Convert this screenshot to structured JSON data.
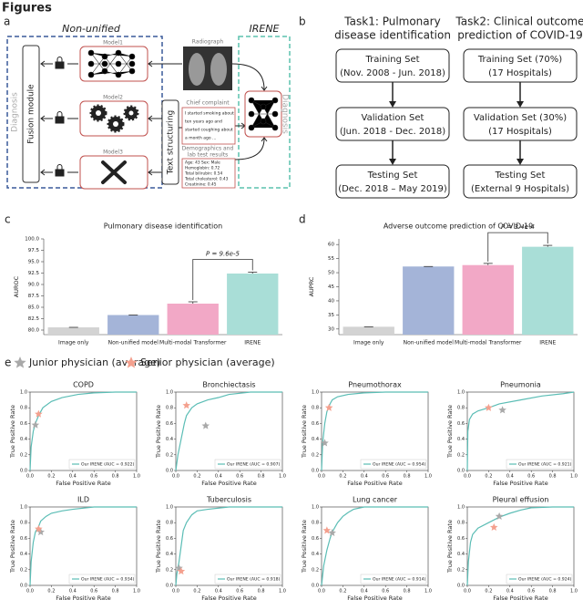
{
  "header": {
    "title": "Figures"
  },
  "panel_labels": [
    "a",
    "b",
    "c",
    "d",
    "e"
  ],
  "diagram_a": {
    "non_unified": "Non-unified",
    "irene": "IRENE",
    "models": [
      "Model1",
      "Model2",
      "Model3"
    ],
    "radiograph": "Radiograph",
    "chief_complaint": "Chief complaint",
    "chief_complaint_text": [
      "I started smoking about",
      "ten years ago and",
      "started coughing about",
      "a month ago ..."
    ],
    "demographics": [
      "Demographics and",
      "lab test results"
    ],
    "demographics_text": [
      "Age: 43 Sex: Male",
      "Hemoglobin: 0.72",
      "Total bilirubin: 0.54",
      "Total cholesterol: 0.43",
      "Creatinine: 0.45"
    ],
    "fusion": "Fusion module",
    "text_structuring": "Text structuring",
    "diagnosis_left": "Diagnosis",
    "diagnosis_right": "Diagnosis"
  },
  "flow_b": {
    "tasks": [
      {
        "title": [
          "Task1: Pulmonary",
          "disease identification"
        ],
        "boxes": [
          [
            "Training Set",
            "(Nov. 2008 - Jun. 2018)"
          ],
          [
            "Validation Set",
            "(Jun. 2018 - Dec. 2018)"
          ],
          [
            "Testing Set",
            "(Dec. 2018 – May 2019)"
          ]
        ]
      },
      {
        "title": [
          "Task2: Clinical outcome",
          "prediction of COVID-19"
        ],
        "boxes": [
          [
            "Training Set (70%)",
            "(17 Hospitals)"
          ],
          [
            "Validation Set (30%)",
            "(17 Hospitals)"
          ],
          [
            "Testing Set",
            "(External 9 Hospitals)"
          ]
        ]
      }
    ]
  },
  "legend_e": [
    {
      "name": "Junior physician (average)",
      "color": "#a9a9a9"
    },
    {
      "name": "Senior physician (average)",
      "color": "#f4a08e"
    }
  ],
  "chart_data": [
    {
      "type": "bar",
      "title": "Pulmonary disease identification",
      "ylabel": "AUROC",
      "categories": [
        "Image only",
        "Non-unified model",
        "Multi-modal Transformer",
        "IRENE"
      ],
      "values": [
        80.6,
        83.3,
        85.8,
        92.4
      ],
      "errors": [
        0,
        0,
        0.4,
        0.3
      ],
      "colors": [
        "#d3d3d3",
        "#a4b4d8",
        "#f2a8c6",
        "#a9ded7"
      ],
      "ylim": [
        79,
        100
      ],
      "yticks": [
        {
          "value": 80,
          "label": "80.0"
        },
        82.5,
        {
          "value": 85,
          "label": "85.0"
        },
        87.5,
        {
          "value": 90,
          "label": "90.0"
        },
        92.5,
        {
          "value": 95,
          "label": "95.0"
        },
        97.5,
        {
          "value": 100,
          "label": "100.0"
        }
      ],
      "annotation": "P = 9.6e-5"
    },
    {
      "type": "bar",
      "title": "Adverse outcome prediction of COVID-19",
      "ylabel": "AUPRC",
      "categories": [
        "Image only",
        "Non-unified model",
        "Multi-modal Transformer",
        "IRENE"
      ],
      "values": [
        30.8,
        52.2,
        52.7,
        59.2
      ],
      "errors": [
        0,
        0,
        0.6,
        0.5
      ],
      "colors": [
        "#d3d3d3",
        "#a4b4d8",
        "#f2a8c6",
        "#a9ded7"
      ],
      "ylim": [
        28,
        62
      ],
      "yticks": [
        30,
        35,
        40,
        45,
        50,
        55,
        60
      ],
      "annotation": "P = 3.4e-4"
    },
    {
      "type": "roc",
      "title": "COPD",
      "xlabel": "False Positive Rate",
      "ylabel": "True Positive Rate",
      "x": [
        0,
        0.01,
        0.03,
        0.05,
        0.08,
        0.12,
        0.2,
        0.3,
        0.45,
        0.6,
        0.8,
        1
      ],
      "series": [
        {
          "name": "Our IRENE (AUC = 0.922)",
          "color": "#5bbdb5",
          "values": [
            0,
            0.3,
            0.5,
            0.6,
            0.7,
            0.8,
            0.88,
            0.93,
            0.97,
            0.99,
            1,
            1
          ]
        }
      ],
      "junior": {
        "x": 0.05,
        "y": 0.58
      },
      "senior": {
        "x": 0.08,
        "y": 0.72
      },
      "xlim": [
        0,
        1
      ],
      "ylim": [
        0,
        1
      ],
      "xticks": [
        {
          "value": 0,
          "label": "0.0"
        },
        0.2,
        0.4,
        0.6,
        0.8,
        {
          "value": 1,
          "label": "1.0"
        }
      ],
      "yticks": [
        {
          "value": 0,
          "label": "0.0"
        },
        0.2,
        0.4,
        0.6,
        0.8,
        {
          "value": 1,
          "label": "1.0"
        }
      ]
    },
    {
      "type": "roc",
      "title": "Bronchiectasis",
      "xlabel": "False Positive Rate",
      "ylabel": "True Positive Rate",
      "x": [
        0,
        0.02,
        0.05,
        0.08,
        0.1,
        0.15,
        0.2,
        0.3,
        0.4,
        0.5,
        0.7,
        1
      ],
      "series": [
        {
          "name": "Our IRENE (AUC = 0.907)",
          "color": "#5bbdb5",
          "values": [
            0,
            0.2,
            0.4,
            0.6,
            0.7,
            0.8,
            0.85,
            0.9,
            0.93,
            0.97,
            1,
            1
          ]
        }
      ],
      "junior": {
        "x": 0.28,
        "y": 0.57
      },
      "senior": {
        "x": 0.1,
        "y": 0.83
      },
      "xlim": [
        0,
        1
      ],
      "ylim": [
        0,
        1
      ],
      "xticks": [
        {
          "value": 0,
          "label": "0.0"
        },
        0.2,
        0.4,
        0.6,
        0.8,
        {
          "value": 1,
          "label": "1.0"
        }
      ],
      "yticks": [
        {
          "value": 0,
          "label": "0.0"
        },
        0.2,
        0.4,
        0.6,
        0.8,
        {
          "value": 1,
          "label": "1.0"
        }
      ]
    },
    {
      "type": "roc",
      "title": "Pneumothorax",
      "xlabel": "False Positive Rate",
      "ylabel": "True Positive Rate",
      "x": [
        0,
        0.01,
        0.03,
        0.05,
        0.08,
        0.1,
        0.15,
        0.25,
        0.4,
        0.6,
        1
      ],
      "series": [
        {
          "name": "Our IRENE (AUC = 0.954)",
          "color": "#5bbdb5",
          "values": [
            0,
            0.35,
            0.6,
            0.75,
            0.85,
            0.9,
            0.94,
            0.97,
            0.99,
            1,
            1
          ]
        }
      ],
      "junior": {
        "x": 0.03,
        "y": 0.35
      },
      "senior": {
        "x": 0.07,
        "y": 0.8
      },
      "xlim": [
        0,
        1
      ],
      "ylim": [
        0,
        1
      ],
      "xticks": [
        {
          "value": 0,
          "label": "0.0"
        },
        0.2,
        0.4,
        0.6,
        0.8,
        {
          "value": 1,
          "label": "1.0"
        }
      ],
      "yticks": [
        {
          "value": 0,
          "label": "0.0"
        },
        0.2,
        0.4,
        0.6,
        0.8,
        {
          "value": 1,
          "label": "1.0"
        }
      ]
    },
    {
      "type": "roc",
      "title": "Pneumonia",
      "xlabel": "False Positive Rate",
      "ylabel": "True Positive Rate",
      "x": [
        0,
        0.005,
        0.02,
        0.05,
        0.1,
        0.2,
        0.3,
        0.5,
        0.7,
        0.9,
        1
      ],
      "series": [
        {
          "name": "Our IRENE (AUC = 0.921)",
          "color": "#5bbdb5",
          "values": [
            0,
            0.5,
            0.65,
            0.72,
            0.76,
            0.8,
            0.85,
            0.9,
            0.95,
            0.98,
            1
          ]
        }
      ],
      "junior": {
        "x": 0.33,
        "y": 0.77
      },
      "senior": {
        "x": 0.2,
        "y": 0.8
      },
      "xlim": [
        0,
        1
      ],
      "ylim": [
        0,
        1
      ],
      "xticks": [
        {
          "value": 0,
          "label": "0.0"
        },
        0.2,
        0.4,
        0.6,
        0.8,
        {
          "value": 1,
          "label": "1.0"
        }
      ],
      "yticks": [
        {
          "value": 0,
          "label": "0.0"
        },
        0.2,
        0.4,
        0.6,
        0.8,
        {
          "value": 1,
          "label": "1.0"
        }
      ]
    },
    {
      "type": "roc",
      "title": "ILD",
      "xlabel": "False Positive Rate",
      "ylabel": "True Positive Rate",
      "x": [
        0,
        0.01,
        0.03,
        0.05,
        0.08,
        0.1,
        0.15,
        0.2,
        0.3,
        0.4,
        0.6,
        1
      ],
      "series": [
        {
          "name": "Our IRENE (AUC = 0.934)",
          "color": "#5bbdb5",
          "values": [
            0,
            0.3,
            0.55,
            0.68,
            0.75,
            0.82,
            0.88,
            0.92,
            0.95,
            0.97,
            1,
            1
          ]
        }
      ],
      "junior": {
        "x": 0.1,
        "y": 0.68
      },
      "senior": {
        "x": 0.08,
        "y": 0.72
      },
      "xlim": [
        0,
        1
      ],
      "ylim": [
        0,
        1
      ],
      "xticks": [
        {
          "value": 0,
          "label": "0.0"
        },
        0.2,
        0.4,
        0.6,
        0.8,
        {
          "value": 1,
          "label": "1.0"
        }
      ],
      "yticks": [
        {
          "value": 0,
          "label": "0.0"
        },
        0.2,
        0.4,
        0.6,
        0.8,
        {
          "value": 1,
          "label": "1.0"
        }
      ]
    },
    {
      "type": "roc",
      "title": "Tuberculosis",
      "xlabel": "False Positive Rate",
      "ylabel": "True Positive Rate",
      "x": [
        0,
        0.01,
        0.03,
        0.05,
        0.07,
        0.1,
        0.15,
        0.2,
        0.3,
        0.5,
        1
      ],
      "series": [
        {
          "name": "Our IRENE (AUC = 0.918)",
          "color": "#5bbdb5",
          "values": [
            0,
            0.15,
            0.3,
            0.5,
            0.7,
            0.8,
            0.9,
            0.95,
            0.97,
            1,
            1
          ]
        }
      ],
      "junior": {
        "x": 0.03,
        "y": 0.22
      },
      "senior": {
        "x": 0.05,
        "y": 0.18
      },
      "xlim": [
        0,
        1
      ],
      "ylim": [
        0,
        1
      ],
      "xticks": [
        {
          "value": 0,
          "label": "0.0"
        },
        0.2,
        0.4,
        0.6,
        0.8,
        {
          "value": 1,
          "label": "1.0"
        }
      ],
      "yticks": [
        {
          "value": 0,
          "label": "0.0"
        },
        0.2,
        0.4,
        0.6,
        0.8,
        {
          "value": 1,
          "label": "1.0"
        }
      ]
    },
    {
      "type": "roc",
      "title": "Lung cancer",
      "xlabel": "False Positive Rate",
      "ylabel": "True Positive Rate",
      "x": [
        0,
        0.02,
        0.05,
        0.08,
        0.1,
        0.15,
        0.2,
        0.25,
        0.3,
        0.4,
        0.6,
        1
      ],
      "series": [
        {
          "name": "Our IRENE (AUC = 0.914)",
          "color": "#5bbdb5",
          "values": [
            0,
            0.25,
            0.45,
            0.6,
            0.68,
            0.8,
            0.88,
            0.93,
            0.97,
            1,
            1,
            1
          ]
        }
      ],
      "junior": {
        "x": 0.1,
        "y": 0.67
      },
      "senior": {
        "x": 0.05,
        "y": 0.7
      },
      "xlim": [
        0,
        1
      ],
      "ylim": [
        0,
        1
      ],
      "xticks": [
        {
          "value": 0,
          "label": "0.0"
        },
        0.2,
        0.4,
        0.6,
        0.8,
        {
          "value": 1,
          "label": "1.0"
        }
      ],
      "yticks": [
        {
          "value": 0,
          "label": "0.0"
        },
        0.2,
        0.4,
        0.6,
        0.8,
        {
          "value": 1,
          "label": "1.0"
        }
      ]
    },
    {
      "type": "roc",
      "title": "Pleural effusion",
      "xlabel": "False Positive Rate",
      "ylabel": "True Positive Rate",
      "x": [
        0,
        0.01,
        0.03,
        0.05,
        0.1,
        0.2,
        0.3,
        0.4,
        0.5,
        0.6,
        0.8,
        1
      ],
      "series": [
        {
          "name": "Our IRENE (AUC = 0.924)",
          "color": "#5bbdb5",
          "values": [
            0,
            0.3,
            0.55,
            0.65,
            0.73,
            0.8,
            0.87,
            0.92,
            0.96,
            0.99,
            1,
            1
          ]
        }
      ],
      "junior": {
        "x": 0.3,
        "y": 0.88
      },
      "senior": {
        "x": 0.25,
        "y": 0.74
      },
      "xlim": [
        0,
        1
      ],
      "ylim": [
        0,
        1
      ],
      "xticks": [
        {
          "value": 0,
          "label": "0.0"
        },
        0.2,
        0.4,
        0.6,
        0.8,
        {
          "value": 1,
          "label": "1.0"
        }
      ],
      "yticks": [
        {
          "value": 0,
          "label": "0.0"
        },
        0.2,
        0.4,
        0.6,
        0.8,
        {
          "value": 1,
          "label": "1.0"
        }
      ]
    }
  ]
}
